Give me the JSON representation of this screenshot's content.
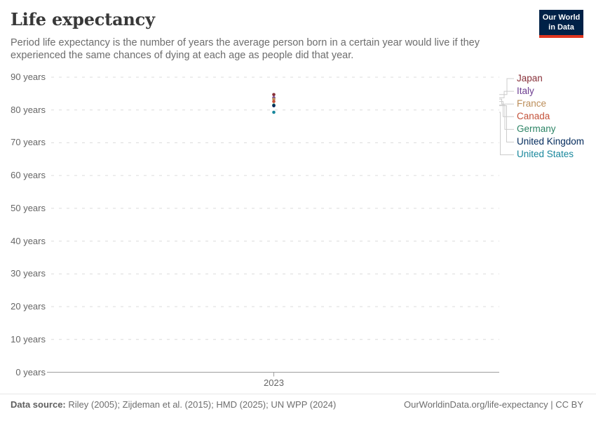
{
  "header": {
    "title": "Life expectancy",
    "subtitle": "Period life expectancy is the number of years the average person born in a certain year would live if they experienced the same chances of dying at each age as people did that year.",
    "logo": {
      "line1": "Our World",
      "line2": "in Data",
      "bg_color": "#002147",
      "accent_color": "#e0351f"
    }
  },
  "chart_data": {
    "type": "scatter",
    "x": [
      2023
    ],
    "x_tick_labels": [
      "2023"
    ],
    "y_tick_labels": [
      "90 years",
      "80 years",
      "70 years",
      "60 years",
      "50 years",
      "40 years",
      "30 years",
      "20 years",
      "10 years",
      "0 years"
    ],
    "ylim": [
      0,
      90
    ],
    "grid": "horizontal-dashed",
    "legend_position": "right",
    "title": "Life expectancy",
    "xlabel": "",
    "ylabel": "",
    "series": [
      {
        "name": "Japan",
        "color": "#883039",
        "values": [
          84.7
        ]
      },
      {
        "name": "Italy",
        "color": "#6D3E91",
        "values": [
          83.7
        ]
      },
      {
        "name": "France",
        "color": "#BC8E5A",
        "values": [
          83.3
        ]
      },
      {
        "name": "Canada",
        "color": "#C4523A",
        "values": [
          82.6
        ]
      },
      {
        "name": "Germany",
        "color": "#2C8465",
        "values": [
          81.5
        ]
      },
      {
        "name": "United Kingdom",
        "color": "#00295B",
        "values": [
          81.3
        ]
      },
      {
        "name": "United States",
        "color": "#18879C",
        "values": [
          79.3
        ]
      }
    ]
  },
  "footer": {
    "source_label": "Data source:",
    "source_text": " Riley (2005); Zijdeman et al. (2015); HMD (2025); UN WPP (2024)",
    "attribution": "OurWorldinData.org/life-expectancy | CC BY"
  }
}
